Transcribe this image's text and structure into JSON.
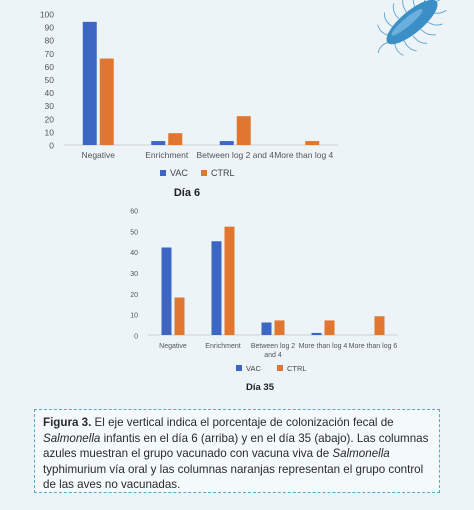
{
  "colors": {
    "vac": "#3b66c4",
    "ctrl": "#e0762f",
    "axis_line": "#cfcfcf",
    "bacterium": "#3b8fc7"
  },
  "icons": {
    "corner": "bacterium-icon"
  },
  "chart_data": [
    {
      "type": "bar",
      "title": "Día 6",
      "categories": [
        "Negative",
        "Enrichment",
        "Between log 2 and 4",
        "More than log 4"
      ],
      "series": [
        {
          "name": "VAC",
          "values": [
            94,
            3,
            3,
            0
          ]
        },
        {
          "name": "CTRL",
          "values": [
            66,
            9,
            22,
            3
          ]
        }
      ],
      "yticks": [
        0,
        10,
        20,
        30,
        40,
        50,
        60,
        70,
        80,
        90,
        100
      ],
      "ylim": [
        0,
        100
      ],
      "grid": false,
      "legend": "bottom"
    },
    {
      "type": "bar",
      "title": "Día 35",
      "categories": [
        "Negative",
        "Enrichment",
        "Between log 2 and 4",
        "More than log 4",
        "More than log 6"
      ],
      "series": [
        {
          "name": "VAC",
          "values": [
            42,
            45,
            6,
            1,
            0
          ]
        },
        {
          "name": "CTRL",
          "values": [
            18,
            52,
            7,
            7,
            9
          ]
        }
      ],
      "yticks": [
        0,
        10,
        20,
        30,
        40,
        50,
        60
      ],
      "ylim": [
        0,
        60
      ],
      "grid": false,
      "legend": "bottom"
    }
  ],
  "caption": {
    "label": "Figura 3.",
    "t1": " El eje vertical indica el porcentaje de colonización fecal de ",
    "i1": "Salmonella",
    "t2": " infantis en el día 6 (arriba) y en el día 35 (abajo). Las columnas azules muestran el grupo vacunado con vacuna viva de ",
    "i2": "Salmonella",
    "t3": " typhimurium vía oral y las columnas naranjas representan el grupo control de las aves no vacunadas."
  }
}
